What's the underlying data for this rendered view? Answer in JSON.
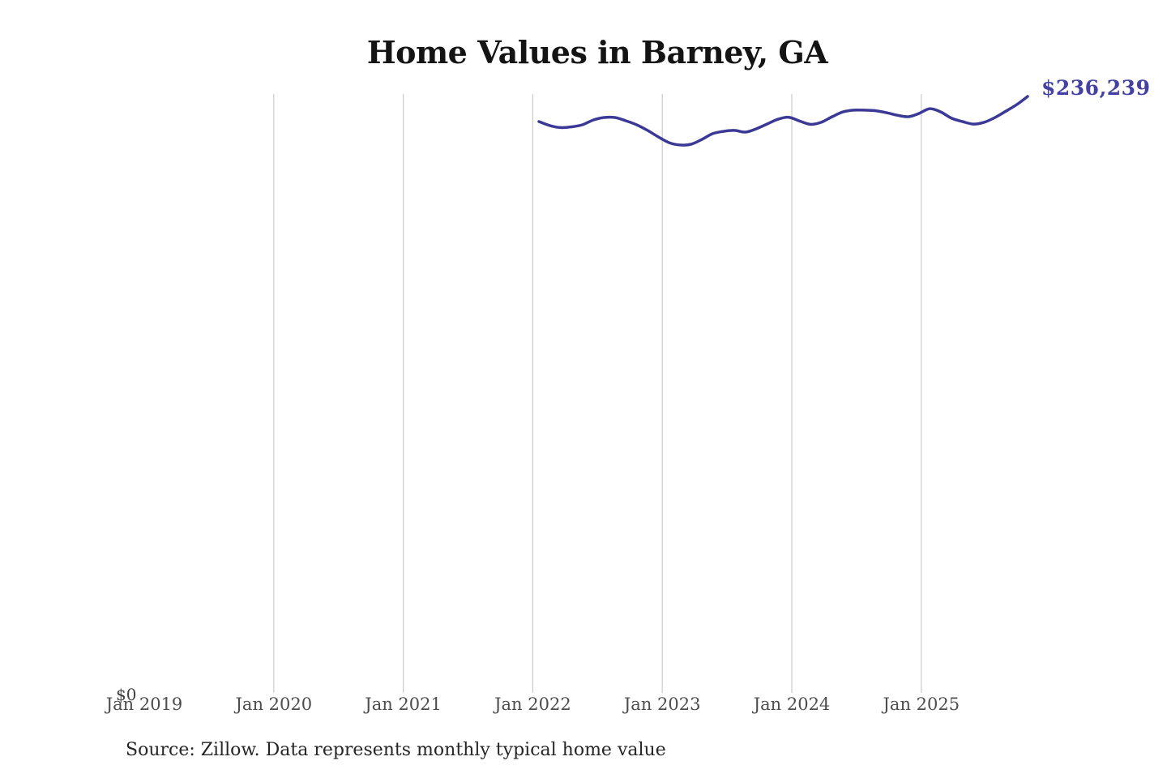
{
  "title": "Home Values in Barney, GA",
  "end_value_label": "$236,239",
  "source_note": "Source: Zillow. Data represents monthly typical home value",
  "colors": {
    "line": "#3b3896",
    "end_label": "#4440a4",
    "gridline": "#cccccc",
    "axis_text": "#4d4d4d",
    "title_text": "#141414",
    "source_text": "#262626",
    "background": "#ffffff"
  },
  "chart_data": {
    "type": "line",
    "title": "Home Values in Barney, GA",
    "xlabel": "",
    "ylabel": "",
    "x_tick_labels": [
      "Jan 2019",
      "Jan 2020",
      "Jan 2021",
      "Jan 2022",
      "Jan 2023",
      "Jan 2024",
      "Jan 2025"
    ],
    "y_tick_labels": [
      "$0"
    ],
    "ylim": [
      0,
      250000
    ],
    "grid": "vertical-only",
    "legend_position": "none",
    "annotation": {
      "text": "$236,239",
      "position": "line-end"
    },
    "x": [
      "2022-01",
      "2022-02",
      "2022-03",
      "2022-04",
      "2022-05",
      "2022-06",
      "2022-07",
      "2022-08",
      "2022-09",
      "2022-10",
      "2022-11",
      "2022-12",
      "2023-01",
      "2023-02",
      "2023-03",
      "2023-04",
      "2023-05",
      "2023-06",
      "2023-07",
      "2023-08",
      "2023-09",
      "2023-10",
      "2023-11",
      "2023-12",
      "2024-01",
      "2024-02",
      "2024-03",
      "2024-04",
      "2024-05",
      "2024-06",
      "2024-07",
      "2024-08",
      "2024-09",
      "2024-10",
      "2024-11",
      "2024-12",
      "2025-01",
      "2025-02",
      "2025-03",
      "2025-04",
      "2025-05",
      "2025-06",
      "2025-07",
      "2025-08",
      "2025-09",
      "2025-10"
    ],
    "series": [
      {
        "name": "Monthly typical home value",
        "values": [
          226300,
          224700,
          223900,
          224200,
          225000,
          226900,
          227900,
          227900,
          226600,
          225000,
          222800,
          220200,
          217900,
          217000,
          217300,
          219200,
          221500,
          222400,
          222800,
          222100,
          223400,
          225300,
          227200,
          228000,
          226500,
          225200,
          226000,
          228200,
          230100,
          230800,
          230800,
          230600,
          229800,
          228800,
          228200,
          229500,
          231400,
          230100,
          227600,
          226300,
          225300,
          226000,
          227900,
          230400,
          233000,
          236239
        ]
      }
    ]
  }
}
